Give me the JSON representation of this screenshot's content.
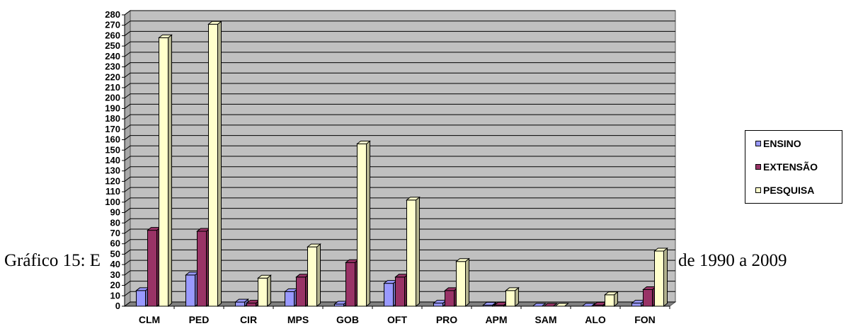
{
  "caption": {
    "left": "Gráfico 15: E",
    "right": "de 1990 a 2009"
  },
  "chart_data": {
    "type": "bar",
    "categories": [
      "CLM",
      "PED",
      "CIR",
      "MPS",
      "GOB",
      "OFT",
      "PRO",
      "APM",
      "SAM",
      "ALO",
      "FON"
    ],
    "series": [
      {
        "name": "ENSINO",
        "color": "#9999ff",
        "values": [
          15,
          30,
          4,
          14,
          2,
          22,
          3,
          1,
          0,
          0,
          3
        ]
      },
      {
        "name": "EXTENSÃO",
        "color": "#993366",
        "values": [
          73,
          72,
          3,
          28,
          42,
          28,
          15,
          1,
          0,
          1,
          16
        ]
      },
      {
        "name": "PESQUISA",
        "color": "#ffffcc",
        "values": [
          258,
          271,
          27,
          57,
          156,
          102,
          43,
          15,
          0,
          11,
          53
        ]
      }
    ],
    "yticks": [
      "0",
      "10",
      "20",
      "30",
      "40",
      "50",
      "60",
      "70",
      "80",
      "90",
      "100",
      "110",
      "120",
      "130",
      "140",
      "150",
      "160",
      "170",
      "180",
      "190",
      "200",
      "210",
      "220",
      "230",
      "240",
      "250",
      "260",
      "270",
      "280"
    ],
    "ylim": [
      0,
      280
    ],
    "ystep": 10,
    "grid": true,
    "legend_position": "right",
    "plot_background": "#c0c0c0"
  }
}
